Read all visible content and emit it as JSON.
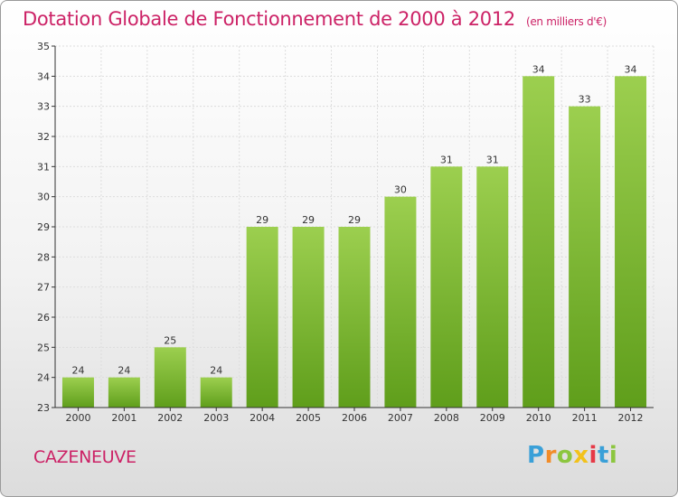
{
  "title": "Dotation Globale de Fonctionnement de 2000 à 2012",
  "subtitle": "(en milliers d'€)",
  "town": "CAZENEUVE",
  "logo": {
    "text": "Proxiti",
    "colors": [
      "#3aa0d8",
      "#f28c28",
      "#8cc63f",
      "#f2c21b",
      "#e63946",
      "#3aa0d8",
      "#8cc63f"
    ]
  },
  "colors": {
    "bar_top": "#9ccf4f",
    "bar_bottom": "#5f9e1b",
    "title": "#cc2266",
    "grid": "#dddddd",
    "axis": "#333333"
  },
  "chart_data": {
    "type": "bar",
    "title": "Dotation Globale de Fonctionnement de 2000 à 2012",
    "subtitle": "(en milliers d'€)",
    "categories": [
      "2000",
      "2001",
      "2002",
      "2003",
      "2004",
      "2005",
      "2006",
      "2007",
      "2008",
      "2009",
      "2010",
      "2011",
      "2012"
    ],
    "values": [
      24,
      24,
      25,
      24,
      29,
      29,
      29,
      30,
      31,
      31,
      34,
      33,
      34
    ],
    "ylim": [
      23,
      35
    ],
    "yticks": [
      23,
      24,
      25,
      26,
      27,
      28,
      29,
      30,
      31,
      32,
      33,
      34,
      35
    ],
    "grid": true,
    "data_labels": true
  }
}
